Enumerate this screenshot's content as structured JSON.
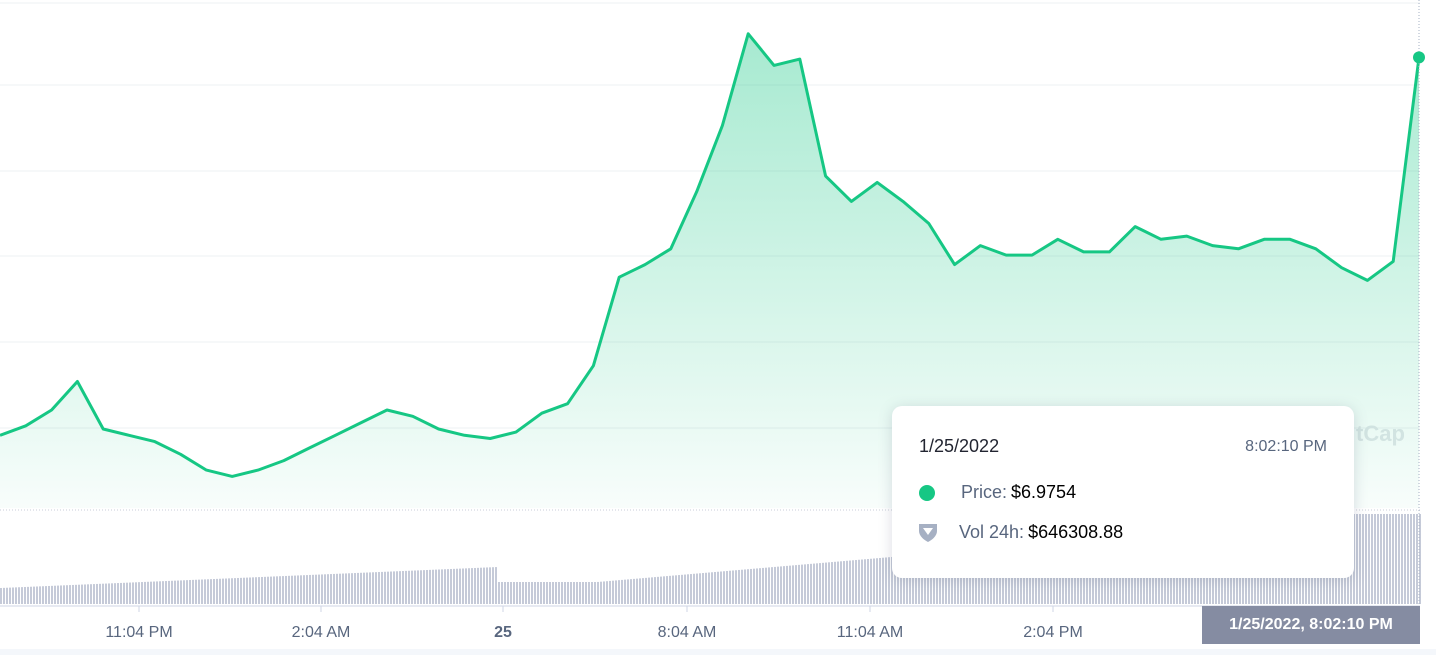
{
  "colors": {
    "price_line": "#16c784",
    "volume_bar": "#c5cad8",
    "axis_label": "#58667e",
    "crosshair_bg": "#858ca2"
  },
  "watermark": "tCap",
  "chart_data": {
    "type": "line",
    "x_ticks": [
      "11:04 PM",
      "2:04 AM",
      "25",
      "8:04 AM",
      "11:04 AM",
      "2:04 PM"
    ],
    "x_range": [
      "1/24/2022 8:52 PM",
      "1/25/2022 8:02 PM"
    ],
    "y_range_approx": [
      5.55,
      7.1
    ],
    "grid": true,
    "series": [
      {
        "kind": "price",
        "points_sampled": [
          [
            "1/24 8:52 PM",
            5.78
          ],
          [
            "1/24 9:15 PM",
            5.81
          ],
          [
            "1/24 9:40 PM",
            5.86
          ],
          [
            "1/24 9:50 PM",
            5.95
          ],
          [
            "1/24 10:00 PM",
            5.8
          ],
          [
            "1/24 10:20 PM",
            5.78
          ],
          [
            "1/24 10:40 PM",
            5.76
          ],
          [
            "1/24 11:04 PM",
            5.72
          ],
          [
            "1/24 11:30 PM",
            5.67
          ],
          [
            "1/24 12:00 AM",
            5.65
          ],
          [
            "1/24 12:30 AM",
            5.67
          ],
          [
            "1/24 1:00 AM",
            5.7
          ],
          [
            "1/24 1:30 AM",
            5.74
          ],
          [
            "1/25 2:04 AM",
            5.78
          ],
          [
            "1/25 2:30 AM",
            5.82
          ],
          [
            "1/25 3:00 AM",
            5.86
          ],
          [
            "1/25 3:20 AM",
            5.84
          ],
          [
            "1/25 3:40 AM",
            5.8
          ],
          [
            "1/25 4:00 AM",
            5.78
          ],
          [
            "1/25 4:30 AM",
            5.77
          ],
          [
            "1/25 5:04 AM",
            5.79
          ],
          [
            "1/25 5:30 AM",
            5.85
          ],
          [
            "1/25 6:00 AM",
            5.88
          ],
          [
            "1/25 6:30 AM",
            6.0
          ],
          [
            "1/25 6:50 AM",
            6.28
          ],
          [
            "1/25 7:10 AM",
            6.32
          ],
          [
            "1/25 7:30 AM",
            6.37
          ],
          [
            "1/25 7:50 AM",
            6.55
          ],
          [
            "1/25 8:04 AM",
            6.76
          ],
          [
            "1/25 8:20 AM",
            7.05
          ],
          [
            "1/25 8:35 AM",
            6.95
          ],
          [
            "1/25 8:50 AM",
            6.97
          ],
          [
            "1/25 9:10 AM",
            6.6
          ],
          [
            "1/25 9:30 AM",
            6.52
          ],
          [
            "1/25 9:50 AM",
            6.58
          ],
          [
            "1/25 10:10 AM",
            6.52
          ],
          [
            "1/25 10:30 AM",
            6.45
          ],
          [
            "1/25 11:04 AM",
            6.32
          ],
          [
            "1/25 11:30 AM",
            6.38
          ],
          [
            "1/25 12:00 PM",
            6.35
          ],
          [
            "1/25 12:30 PM",
            6.35
          ],
          [
            "1/25 1:00 PM",
            6.4
          ],
          [
            "1/25 1:30 PM",
            6.36
          ],
          [
            "1/25 2:04 PM",
            6.36
          ],
          [
            "1/25 2:30 PM",
            6.44
          ],
          [
            "1/25 3:00 PM",
            6.4
          ],
          [
            "1/25 3:30 PM",
            6.41
          ],
          [
            "1/25 4:00 PM",
            6.38
          ],
          [
            "1/25 4:30 PM",
            6.37
          ],
          [
            "1/25 5:00 PM",
            6.4
          ],
          [
            "1/25 5:30 PM",
            6.4
          ],
          [
            "1/25 6:00 PM",
            6.37
          ],
          [
            "1/25 6:30 PM",
            6.31
          ],
          [
            "1/25 7:00 PM",
            6.27
          ],
          [
            "1/25 7:30 PM",
            6.33
          ],
          [
            "1/25 8:02 PM",
            6.9754
          ]
        ]
      },
      {
        "kind": "volume",
        "values": "24h volume bars rising from left to right, peaking near 646308.88 at the right edge"
      }
    ]
  },
  "crosshair_label": "1/25/2022, 8:02:10 PM",
  "tooltip": {
    "date": "1/25/2022",
    "time": "8:02:10 PM",
    "price_label": "Price:",
    "price_value": "$6.9754",
    "volume_label": "Vol 24h:",
    "volume_value": "$646308.88"
  }
}
